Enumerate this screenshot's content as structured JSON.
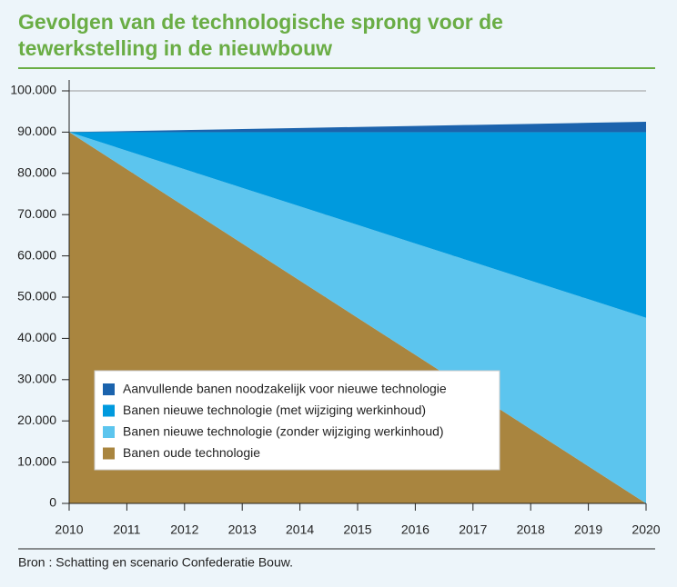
{
  "chart_data": {
    "type": "stacked-area",
    "title": "Gevolgen van de technologische sprong voor de tewerkstelling in de nieuwbouw",
    "source": "Bron : Schatting en scenario Confederatie Bouw.",
    "x": [
      2010,
      2011,
      2012,
      2013,
      2014,
      2015,
      2016,
      2017,
      2018,
      2019,
      2020
    ],
    "xlim": [
      2010,
      2020
    ],
    "xticks": [
      2010,
      2011,
      2012,
      2013,
      2014,
      2015,
      2016,
      2017,
      2018,
      2019,
      2020
    ],
    "ylim": [
      0,
      100000
    ],
    "yticks": [
      0,
      {
        "value": 10000,
        "label": "10.000"
      },
      {
        "value": 20000,
        "label": "20.000"
      },
      {
        "value": 30000,
        "label": "30.000"
      },
      {
        "value": 40000,
        "label": "40.000"
      },
      {
        "value": 50000,
        "label": "50.000"
      },
      {
        "value": 60000,
        "label": "60.000"
      },
      {
        "value": 70000,
        "label": "70.000"
      },
      {
        "value": 80000,
        "label": "80.000"
      },
      {
        "value": 90000,
        "label": "90.000"
      },
      {
        "value": 100000,
        "label": "100.000"
      }
    ],
    "grid": true,
    "series": [
      {
        "name": "Aanvullende banen noodzakelijk voor nieuwe technologie",
        "color": "#1b63ad",
        "values": [
          0,
          250,
          500,
          750,
          1000,
          1250,
          1500,
          1750,
          2000,
          2250,
          2500
        ]
      },
      {
        "name": "Banen nieuwe technologie (met wijziging werkinhoud)",
        "color": "#009ade",
        "values": [
          0,
          4500,
          9000,
          13500,
          18000,
          22500,
          27000,
          31500,
          36000,
          40500,
          45000
        ]
      },
      {
        "name": "Banen nieuwe technologie (zonder wijziging werkinhoud)",
        "color": "#5cc5ee",
        "values": [
          0,
          4500,
          9000,
          13500,
          18000,
          22500,
          27000,
          31500,
          36000,
          40500,
          45000
        ]
      },
      {
        "name": "Banen oude technologie",
        "color": "#a9853f",
        "values": [
          90000,
          81000,
          72000,
          63000,
          54000,
          45000,
          36000,
          27000,
          18000,
          9000,
          0
        ]
      }
    ]
  }
}
